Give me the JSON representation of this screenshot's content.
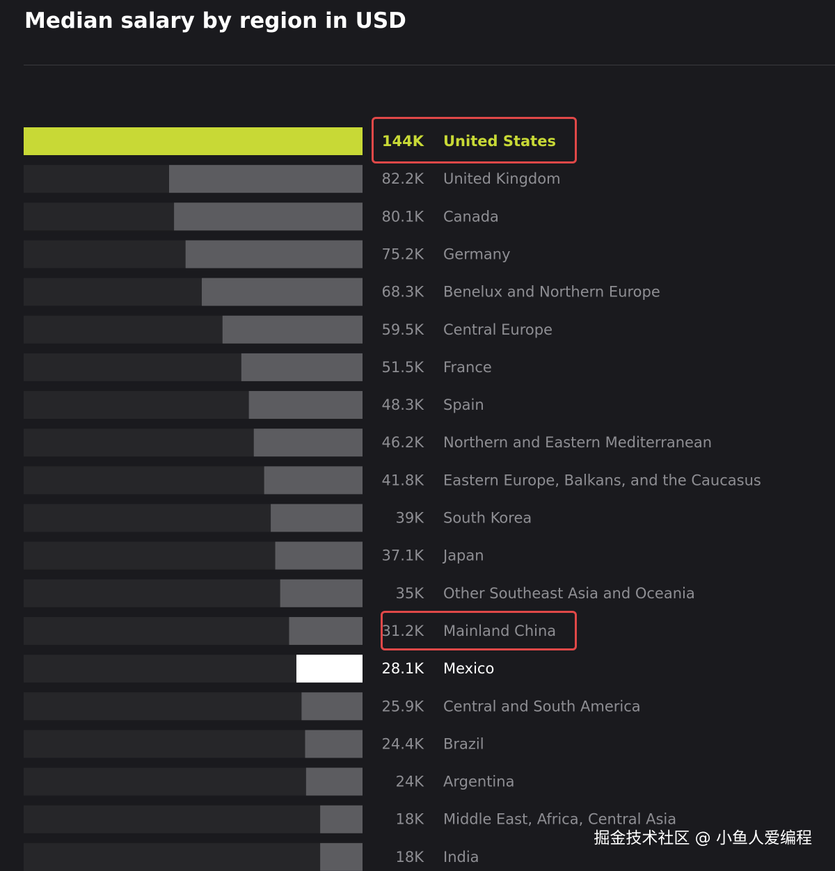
{
  "title": "Median salary by region in USD",
  "watermark": "掘金技术社区 @ 小鱼人爱编程",
  "colors": {
    "background": "#1a1a1e",
    "track": "#262629",
    "bar": "#5c5c60",
    "highlight_bar": "#c8d936",
    "emphasis_bar": "#ffffff",
    "label": "#8e8e93",
    "annotation_box": "#e04848"
  },
  "chart_data": {
    "type": "bar",
    "orientation": "horizontal",
    "title": "Median salary by region in USD",
    "xlim": [
      0,
      144
    ],
    "unit": "K USD",
    "categories": [
      "United States",
      "United Kingdom",
      "Canada",
      "Germany",
      "Benelux and Northern Europe",
      "Central Europe",
      "France",
      "Spain",
      "Northern and Eastern Mediterranean",
      "Eastern Europe, Balkans, and the Caucasus",
      "South Korea",
      "Japan",
      "Other Southeast Asia and Oceania",
      "Mainland China",
      "Mexico",
      "Central and South America",
      "Brazil",
      "Argentina",
      "Middle East, Africa, Central Asia",
      "India"
    ],
    "values": [
      144,
      82.2,
      80.1,
      75.2,
      68.3,
      59.5,
      51.5,
      48.3,
      46.2,
      41.8,
      39,
      37.1,
      35,
      31.2,
      28.1,
      25.9,
      24.4,
      24,
      18,
      18
    ],
    "value_labels": [
      "144K",
      "82.2K",
      "80.1K",
      "75.2K",
      "68.3K",
      "59.5K",
      "51.5K",
      "48.3K",
      "46.2K",
      "41.8K",
      "39K",
      "37.1K",
      "35K",
      "31.2K",
      "28.1K",
      "25.9K",
      "24.4K",
      "24K",
      "18K",
      "18K"
    ],
    "highlighted": [
      "United States"
    ],
    "emphasized": [
      "Mexico"
    ],
    "annotated": [
      "United States",
      "Mainland China"
    ],
    "grid": false,
    "legend": "none"
  }
}
